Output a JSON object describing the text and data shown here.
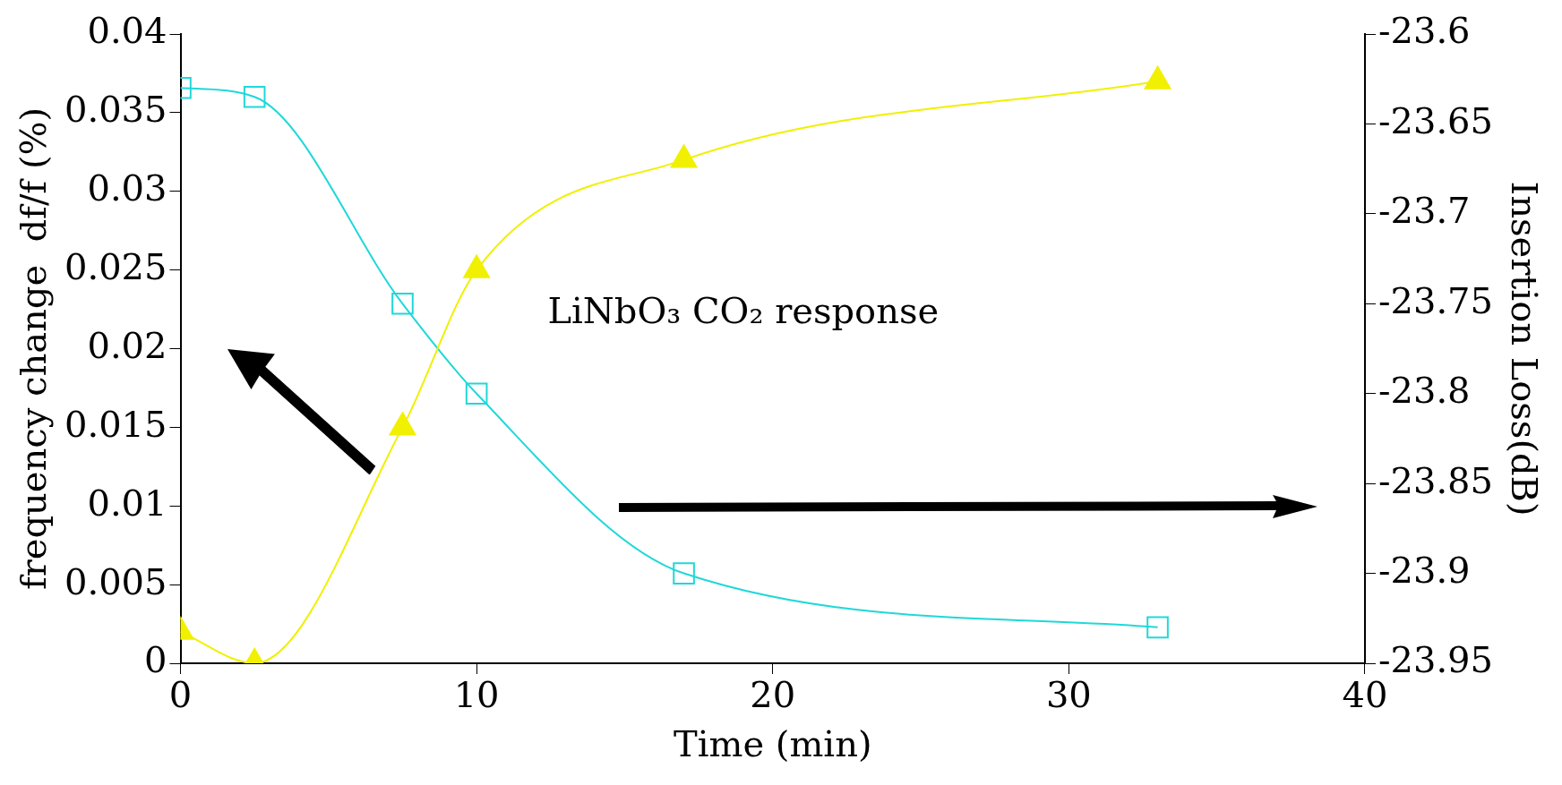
{
  "chart_data": {
    "type": "line",
    "xlabel": "Time (min)",
    "ylabel": "frequency change  df/f (%)",
    "y2label": "Insertion Loss(dB)",
    "xlim": [
      0,
      40
    ],
    "xticks": [
      0,
      10,
      20,
      30,
      40
    ],
    "ylim": [
      0,
      0.04
    ],
    "yticks": [
      0,
      0.005,
      0.01,
      0.015,
      0.02,
      0.025,
      0.03,
      0.035,
      0.04
    ],
    "y2lim": [
      -23.95,
      -23.6
    ],
    "y2ticks": [
      -23.95,
      -23.9,
      -23.85,
      -23.8,
      -23.75,
      -23.7,
      -23.65,
      -23.6
    ],
    "grid": false,
    "legend": false,
    "annotations": [
      "LiNbO₃ CO₂ response"
    ],
    "series": [
      {
        "color": "#f0f000",
        "marker": "triangle",
        "x": [
          0,
          2.5,
          7.5,
          10,
          17,
          33
        ],
        "values": [
          0.002,
          0,
          0.015,
          0.025,
          0.032,
          0.037
        ]
      },
      {
        "color": "#20d8d8",
        "marker": "square",
        "axis": "y2",
        "x": [
          0,
          2.5,
          7.5,
          10,
          17,
          33
        ],
        "values": [
          -23.63,
          -23.635,
          -23.75,
          -23.8,
          -23.9,
          -23.93
        ]
      }
    ]
  }
}
